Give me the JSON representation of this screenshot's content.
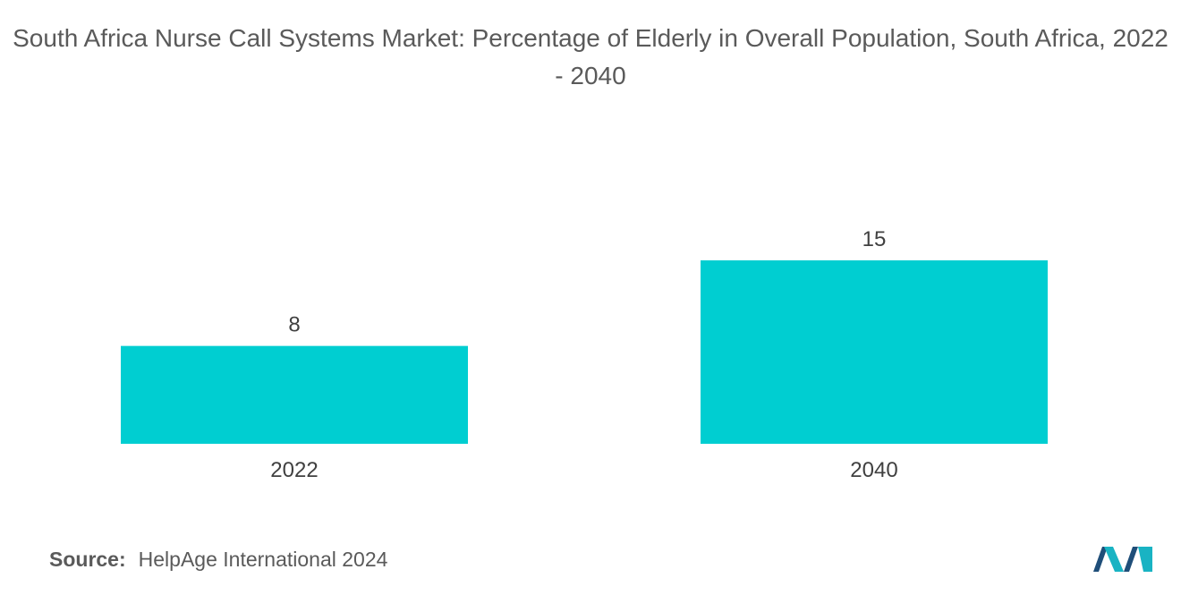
{
  "chart_data": {
    "type": "bar",
    "title": "South Africa Nurse Call Systems Market: Percentage of Elderly in Overall Population, South Africa, 2022 - 2040",
    "categories": [
      "2022",
      "2040"
    ],
    "values": [
      8,
      15
    ],
    "value_labels": [
      "8",
      "15"
    ],
    "xlabel": "",
    "ylabel": "",
    "ylim": [
      0,
      15
    ],
    "grid": false,
    "legend": "none",
    "bar_color": "#00CED1"
  },
  "source": {
    "label": "Source:",
    "text": "HelpAge International 2024"
  },
  "colors": {
    "bar": "#00CED1",
    "logo_dark": "#1f4e79",
    "logo_teal": "#19b3c3"
  }
}
